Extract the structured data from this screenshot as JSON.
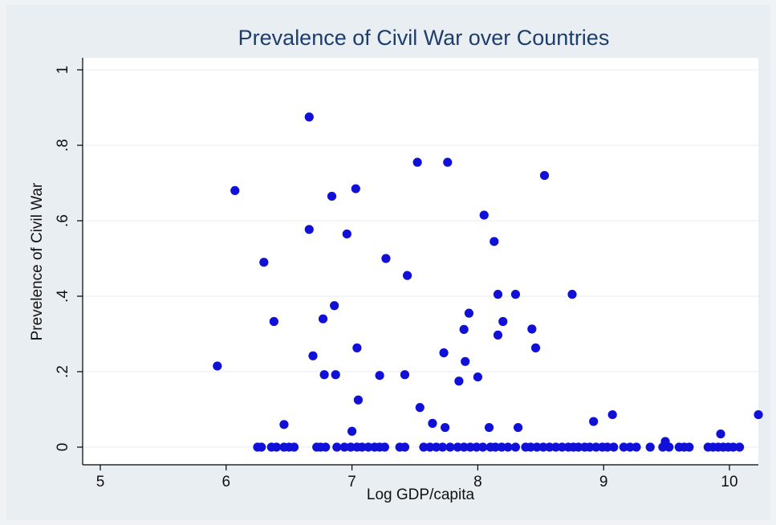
{
  "chart_data": {
    "type": "scatter",
    "title": "Prevalence of Civil War over Countries",
    "xlabel": "Log GDP/capita",
    "ylabel": "Prevelence of Civil War",
    "xlim": [
      5,
      10.25
    ],
    "ylim": [
      0,
      1
    ],
    "xticks": [
      "5",
      "6",
      "7",
      "8",
      "9",
      "10"
    ],
    "xtick_values": [
      5,
      6,
      7,
      8,
      9,
      10
    ],
    "yticks": [
      "0",
      ".2",
      ".4",
      ".6",
      ".8",
      "1"
    ],
    "ytick_values": [
      0,
      0.2,
      0.4,
      0.6,
      0.8,
      1
    ],
    "grid": true,
    "marker_color": "#1010d8",
    "title_color": "#1e3d6b",
    "plot_background": "#ffffff",
    "figure_background": "#e9eef3",
    "series": [
      {
        "points": [
          [
            5.93,
            0.215
          ],
          [
            6.07,
            0.68
          ],
          [
            6.3,
            0.49
          ],
          [
            6.38,
            0.333
          ],
          [
            6.46,
            0.06
          ],
          [
            6.66,
            0.875
          ],
          [
            6.66,
            0.577
          ],
          [
            6.69,
            0.242
          ],
          [
            6.77,
            0.34
          ],
          [
            6.78,
            0.192
          ],
          [
            6.84,
            0.665
          ],
          [
            6.86,
            0.375
          ],
          [
            6.87,
            0.192
          ],
          [
            6.96,
            0.565
          ],
          [
            7.0,
            0.042
          ],
          [
            7.03,
            0.685
          ],
          [
            7.04,
            0.263
          ],
          [
            7.05,
            0.125
          ],
          [
            7.22,
            0.19
          ],
          [
            7.27,
            0.5
          ],
          [
            7.42,
            0.192
          ],
          [
            7.44,
            0.455
          ],
          [
            7.52,
            0.755
          ],
          [
            7.54,
            0.105
          ],
          [
            7.64,
            0.063
          ],
          [
            7.73,
            0.25
          ],
          [
            7.74,
            0.052
          ],
          [
            7.76,
            0.755
          ],
          [
            7.85,
            0.175
          ],
          [
            7.89,
            0.312
          ],
          [
            7.9,
            0.227
          ],
          [
            7.93,
            0.355
          ],
          [
            8.0,
            0.186
          ],
          [
            8.05,
            0.615
          ],
          [
            8.09,
            0.052
          ],
          [
            8.13,
            0.545
          ],
          [
            8.16,
            0.405
          ],
          [
            8.16,
            0.297
          ],
          [
            8.2,
            0.333
          ],
          [
            8.3,
            0.405
          ],
          [
            8.32,
            0.052
          ],
          [
            8.43,
            0.313
          ],
          [
            8.46,
            0.263
          ],
          [
            8.53,
            0.72
          ],
          [
            8.75,
            0.405
          ],
          [
            8.92,
            0.068
          ],
          [
            9.07,
            0.086
          ],
          [
            9.49,
            0.015
          ],
          [
            9.93,
            0.035
          ],
          [
            10.23,
            0.086
          ],
          [
            6.25,
            0
          ],
          [
            6.28,
            0
          ],
          [
            6.36,
            0
          ],
          [
            6.4,
            0
          ],
          [
            6.46,
            0
          ],
          [
            6.5,
            0
          ],
          [
            6.54,
            0
          ],
          [
            6.72,
            0
          ],
          [
            6.75,
            0
          ],
          [
            6.79,
            0
          ],
          [
            6.88,
            0
          ],
          [
            6.94,
            0
          ],
          [
            6.99,
            0
          ],
          [
            7.04,
            0
          ],
          [
            7.08,
            0
          ],
          [
            7.13,
            0
          ],
          [
            7.18,
            0
          ],
          [
            7.22,
            0
          ],
          [
            7.26,
            0
          ],
          [
            7.38,
            0
          ],
          [
            7.42,
            0
          ],
          [
            7.57,
            0
          ],
          [
            7.62,
            0
          ],
          [
            7.67,
            0
          ],
          [
            7.72,
            0
          ],
          [
            7.78,
            0
          ],
          [
            7.84,
            0
          ],
          [
            7.89,
            0
          ],
          [
            7.94,
            0
          ],
          [
            7.99,
            0
          ],
          [
            8.04,
            0
          ],
          [
            8.1,
            0
          ],
          [
            8.14,
            0
          ],
          [
            8.19,
            0
          ],
          [
            8.24,
            0
          ],
          [
            8.3,
            0
          ],
          [
            8.38,
            0
          ],
          [
            8.42,
            0
          ],
          [
            8.47,
            0
          ],
          [
            8.52,
            0
          ],
          [
            8.57,
            0
          ],
          [
            8.62,
            0
          ],
          [
            8.67,
            0
          ],
          [
            8.72,
            0
          ],
          [
            8.76,
            0
          ],
          [
            8.8,
            0
          ],
          [
            8.85,
            0
          ],
          [
            8.89,
            0
          ],
          [
            8.94,
            0
          ],
          [
            8.99,
            0
          ],
          [
            9.03,
            0
          ],
          [
            9.08,
            0
          ],
          [
            9.16,
            0
          ],
          [
            9.21,
            0
          ],
          [
            9.26,
            0
          ],
          [
            9.37,
            0
          ],
          [
            9.47,
            0
          ],
          [
            9.52,
            0
          ],
          [
            9.6,
            0
          ],
          [
            9.64,
            0
          ],
          [
            9.68,
            0
          ],
          [
            9.83,
            0
          ],
          [
            9.87,
            0
          ],
          [
            9.91,
            0
          ],
          [
            9.95,
            0
          ],
          [
            9.99,
            0
          ],
          [
            10.03,
            0
          ],
          [
            10.08,
            0
          ]
        ]
      }
    ]
  }
}
